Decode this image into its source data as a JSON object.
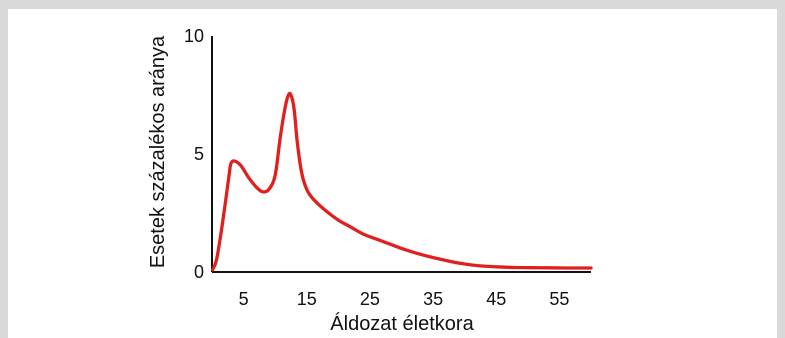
{
  "chart_data": {
    "type": "line",
    "title": "",
    "xlabel": "Áldozat életkora",
    "ylabel": "Esetek százalékos aránya",
    "xlim": [
      0,
      60
    ],
    "ylim": [
      0,
      10
    ],
    "x_ticks": [
      5,
      15,
      25,
      35,
      45,
      55
    ],
    "y_ticks": [
      0,
      5,
      10
    ],
    "grid": false,
    "series": [
      {
        "color": "#e0201f",
        "points": [
          [
            0.1,
            0.1
          ],
          [
            0.7,
            0.5
          ],
          [
            1.4,
            1.6
          ],
          [
            2.2,
            3.1
          ],
          [
            2.7,
            4.1
          ],
          [
            3.0,
            4.6
          ],
          [
            3.6,
            4.7
          ],
          [
            4.6,
            4.5
          ],
          [
            5.8,
            4.0
          ],
          [
            7.0,
            3.6
          ],
          [
            8.0,
            3.4
          ],
          [
            9.0,
            3.5
          ],
          [
            10.0,
            4.1
          ],
          [
            10.8,
            5.7
          ],
          [
            11.6,
            7.0
          ],
          [
            12.1,
            7.5
          ],
          [
            12.5,
            7.5
          ],
          [
            13.0,
            6.9
          ],
          [
            13.5,
            5.5
          ],
          [
            14.2,
            4.2
          ],
          [
            15.0,
            3.5
          ],
          [
            16.0,
            3.1
          ],
          [
            18.0,
            2.6
          ],
          [
            20.0,
            2.2
          ],
          [
            22.0,
            1.9
          ],
          [
            24.0,
            1.6
          ],
          [
            27.0,
            1.3
          ],
          [
            30.0,
            1.0
          ],
          [
            33.0,
            0.75
          ],
          [
            36.0,
            0.55
          ],
          [
            39.0,
            0.38
          ],
          [
            42.0,
            0.27
          ],
          [
            45.0,
            0.22
          ],
          [
            48.0,
            0.19
          ],
          [
            52.0,
            0.18
          ],
          [
            56.0,
            0.17
          ],
          [
            60.0,
            0.17
          ]
        ]
      }
    ]
  }
}
